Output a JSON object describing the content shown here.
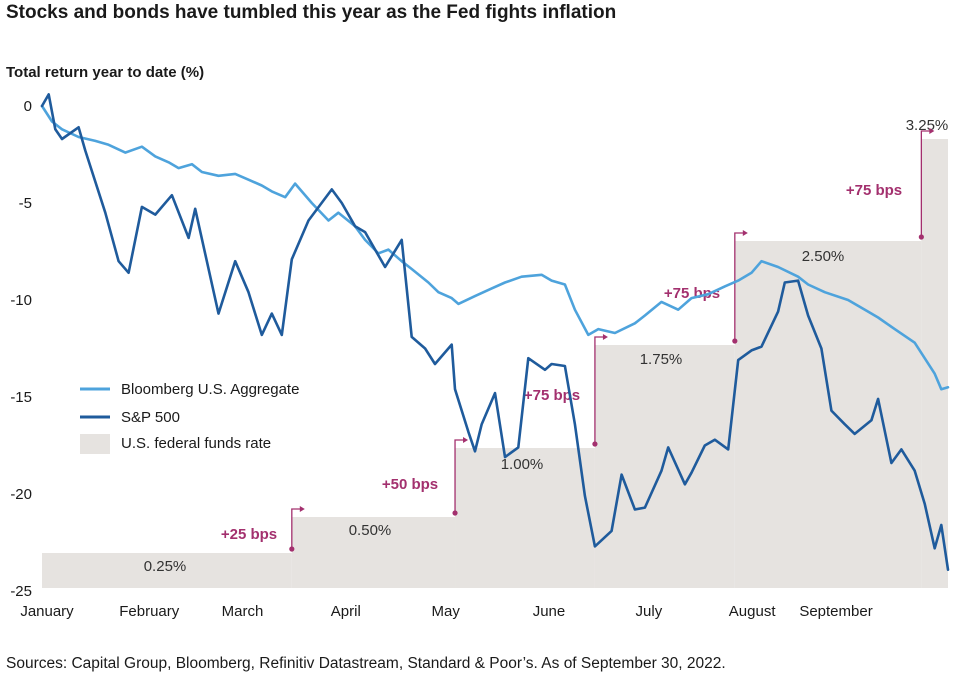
{
  "title": "Stocks and bonds have tumbled this year as the Fed fights inflation",
  "source": "Sources: Capital Group, Bloomberg, Refinitiv Datastream, Standard & Poor’s. As of September 30, 2022.",
  "colors": {
    "aggregate": "#4ea3dc",
    "sp500": "#1f5b9c",
    "fed_fill": "#e6e3e0",
    "hike": "#a3306e"
  },
  "chart_data": {
    "type": "line",
    "ylabel": "Total return year to date (%)",
    "ylim": [
      -25,
      0
    ],
    "yticks": [
      0,
      -5,
      -10,
      -15,
      -20,
      -25
    ],
    "yticklabels": [
      "0",
      "-5",
      "-10",
      "-15",
      "-20",
      "-25"
    ],
    "x_range": [
      "2022-01-01",
      "2022-09-30"
    ],
    "months": [
      "January",
      "February",
      "March",
      "April",
      "May",
      "June",
      "July",
      "August",
      "September"
    ],
    "legend": [
      {
        "label": "Bloomberg U.S. Aggregate",
        "kind": "line",
        "color": "#4ea3dc"
      },
      {
        "label": "S&P 500",
        "kind": "line",
        "color": "#1f5b9c"
      },
      {
        "label": "U.S. federal funds rate",
        "kind": "area",
        "color": "#e6e3e0"
      }
    ],
    "series": [
      {
        "name": "Bloomberg U.S. Aggregate",
        "x": [
          "2022-01-01",
          "2022-01-04",
          "2022-01-07",
          "2022-01-12",
          "2022-01-17",
          "2022-01-21",
          "2022-01-26",
          "2022-01-31",
          "2022-02-04",
          "2022-02-08",
          "2022-02-11",
          "2022-02-15",
          "2022-02-18",
          "2022-02-23",
          "2022-02-28",
          "2022-03-04",
          "2022-03-08",
          "2022-03-11",
          "2022-03-15",
          "2022-03-18",
          "2022-03-23",
          "2022-03-28",
          "2022-03-31",
          "2022-04-05",
          "2022-04-08",
          "2022-04-12",
          "2022-04-15",
          "2022-04-19",
          "2022-04-22",
          "2022-04-27",
          "2022-04-30",
          "2022-05-04",
          "2022-05-06",
          "2022-05-11",
          "2022-05-16",
          "2022-05-20",
          "2022-05-25",
          "2022-05-31",
          "2022-06-03",
          "2022-06-07",
          "2022-06-10",
          "2022-06-14",
          "2022-06-17",
          "2022-06-22",
          "2022-06-28",
          "2022-07-01",
          "2022-07-06",
          "2022-07-11",
          "2022-07-15",
          "2022-07-20",
          "2022-07-25",
          "2022-07-29",
          "2022-08-02",
          "2022-08-05",
          "2022-08-10",
          "2022-08-16",
          "2022-08-19",
          "2022-08-24",
          "2022-08-31",
          "2022-09-06",
          "2022-09-09",
          "2022-09-14",
          "2022-09-20",
          "2022-09-23",
          "2022-09-26",
          "2022-09-28",
          "2022-09-30"
        ],
        "values": [
          0,
          -0.8,
          -1.2,
          -1.6,
          -1.8,
          -2.0,
          -2.4,
          -2.1,
          -2.6,
          -2.9,
          -3.2,
          -3.0,
          -3.4,
          -3.6,
          -3.5,
          -3.8,
          -4.1,
          -4.4,
          -4.7,
          -4.0,
          -5.0,
          -5.9,
          -5.5,
          -6.2,
          -6.9,
          -7.6,
          -7.4,
          -8.0,
          -8.4,
          -9.1,
          -9.6,
          -9.9,
          -10.2,
          -9.8,
          -9.4,
          -9.1,
          -8.8,
          -8.7,
          -9.0,
          -9.2,
          -10.5,
          -11.8,
          -11.5,
          -11.7,
          -11.2,
          -10.8,
          -10.1,
          -10.5,
          -9.9,
          -9.7,
          -9.3,
          -9.0,
          -8.6,
          -8.0,
          -8.3,
          -8.8,
          -9.2,
          -9.6,
          -10.0,
          -10.6,
          -10.9,
          -11.5,
          -12.2,
          -13.0,
          -13.8,
          -14.6,
          -14.5
        ]
      },
      {
        "name": "S&P 500",
        "x": [
          "2022-01-01",
          "2022-01-03",
          "2022-01-05",
          "2022-01-07",
          "2022-01-12",
          "2022-01-14",
          "2022-01-20",
          "2022-01-24",
          "2022-01-27",
          "2022-01-31",
          "2022-02-04",
          "2022-02-09",
          "2022-02-14",
          "2022-02-16",
          "2022-02-23",
          "2022-02-28",
          "2022-03-04",
          "2022-03-08",
          "2022-03-11",
          "2022-03-14",
          "2022-03-17",
          "2022-03-22",
          "2022-03-29",
          "2022-04-01",
          "2022-04-05",
          "2022-04-08",
          "2022-04-12",
          "2022-04-14",
          "2022-04-19",
          "2022-04-22",
          "2022-04-26",
          "2022-04-29",
          "2022-05-04",
          "2022-05-05",
          "2022-05-09",
          "2022-05-11",
          "2022-05-13",
          "2022-05-17",
          "2022-05-20",
          "2022-05-24",
          "2022-05-27",
          "2022-06-01",
          "2022-06-03",
          "2022-06-07",
          "2022-06-10",
          "2022-06-13",
          "2022-06-16",
          "2022-06-21",
          "2022-06-24",
          "2022-06-28",
          "2022-07-01",
          "2022-07-06",
          "2022-07-08",
          "2022-07-13",
          "2022-07-15",
          "2022-07-19",
          "2022-07-22",
          "2022-07-26",
          "2022-07-29",
          "2022-08-02",
          "2022-08-05",
          "2022-08-10",
          "2022-08-12",
          "2022-08-16",
          "2022-08-19",
          "2022-08-23",
          "2022-08-26",
          "2022-08-30",
          "2022-09-02",
          "2022-09-07",
          "2022-09-09",
          "2022-09-13",
          "2022-09-16",
          "2022-09-20",
          "2022-09-23",
          "2022-09-26",
          "2022-09-28",
          "2022-09-30"
        ],
        "values": [
          0,
          0.6,
          -1.2,
          -1.7,
          -1.1,
          -2.3,
          -5.5,
          -8.0,
          -8.6,
          -5.2,
          -5.6,
          -4.6,
          -6.8,
          -5.3,
          -10.7,
          -8.0,
          -9.6,
          -11.8,
          -10.7,
          -11.8,
          -7.9,
          -5.9,
          -4.3,
          -5.0,
          -6.2,
          -6.5,
          -7.7,
          -8.3,
          -6.9,
          -11.9,
          -12.5,
          -13.3,
          -12.3,
          -14.6,
          -16.8,
          -17.8,
          -16.4,
          -14.8,
          -18.1,
          -17.6,
          -13.0,
          -13.6,
          -13.3,
          -13.4,
          -16.4,
          -20.1,
          -22.7,
          -21.9,
          -19.0,
          -20.8,
          -20.7,
          -18.8,
          -17.6,
          -19.5,
          -18.9,
          -17.5,
          -17.2,
          -17.7,
          -13.1,
          -12.6,
          -12.4,
          -10.6,
          -9.1,
          -9.0,
          -10.8,
          -12.5,
          -15.7,
          -16.4,
          -16.9,
          -16.2,
          -15.1,
          -18.4,
          -17.7,
          -18.8,
          -20.5,
          -22.8,
          -21.6,
          -23.9
        ]
      },
      {
        "name": "U.S. federal funds rate",
        "segments": [
          {
            "start": "2022-01-01",
            "label": "0.25%"
          },
          {
            "start": "2022-03-17",
            "label": "0.50%",
            "change": "+25 bps"
          },
          {
            "start": "2022-05-05",
            "label": "1.00%",
            "change": "+50 bps"
          },
          {
            "start": "2022-06-16",
            "label": "1.75%",
            "change": "+75 bps"
          },
          {
            "start": "2022-07-28",
            "label": "2.50%",
            "change": "+75 bps"
          },
          {
            "start": "2022-09-22",
            "label": "3.25%",
            "change": "+75 bps"
          }
        ]
      }
    ]
  }
}
